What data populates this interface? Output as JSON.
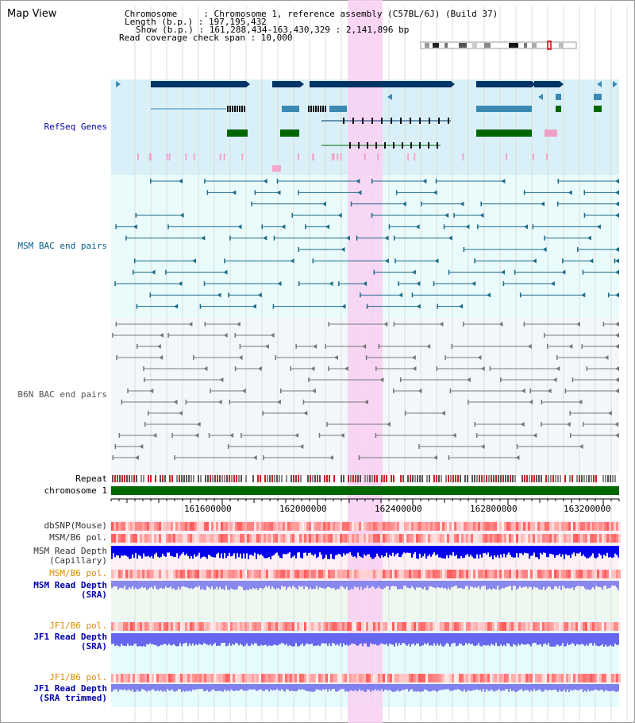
{
  "map_view": {
    "title": "Map View",
    "info": {
      "chromosome": "Chromosome     : Chromosome 1, reference assembly (C57BL/6J) (Build 37)",
      "length": "Length (b.p.) : 197,195,432",
      "show": "Show (b.p.) : 161,288,434-163,430,329 : 2,141,896 bp",
      "span": "Read coverage check span : 10,000"
    },
    "ruler": {
      "ticks": [
        "161600000",
        "162000000",
        "162400000",
        "162800000",
        "163200000"
      ]
    },
    "tracks": {
      "refseq": "RefSeq Genes",
      "msm_bac": "MSM BAC end pairs",
      "b6n_bac": "B6N BAC end pairs",
      "repeat": "Repeat",
      "chromosome": "chromosome 1",
      "dbsnp": "dbSNP(Mouse)",
      "msm_b6_pol": "MSM/B6 pol.",
      "msm_depth_cap_1": "MSM Read Depth",
      "msm_depth_cap_2": "(Capillary)",
      "msm_b6_pol2": "MSM/B6 pol.",
      "msm_depth_sra_1": "MSM Read Depth",
      "msm_depth_sra_2": "(SRA)",
      "jf1_pol": "JF1/B6 pol.",
      "jf1_depth_1": "JF1 Read Depth",
      "jf1_depth_2": "(SRA)",
      "jf1_pol2": "JF1/B6 pol.",
      "jf1_trim_1": "JF1 Read Depth",
      "jf1_trim_2": "(SRA trimmed)"
    },
    "colors": {
      "refseq_bg": "#d9f0f8",
      "bac_bg": "#eafbfb",
      "b6n_bg": "#f4f7f9",
      "highlight": "#f8d0f2",
      "gene_dark": "#003366",
      "gene_mid": "#3b8ab4",
      "gene_green": "#006600",
      "msm_line": "#1d6b8a",
      "b6n_line": "#777777",
      "label_navy": "#0000aa",
      "label_teal": "#005b86",
      "label_orange": "#e08a00"
    }
  }
}
